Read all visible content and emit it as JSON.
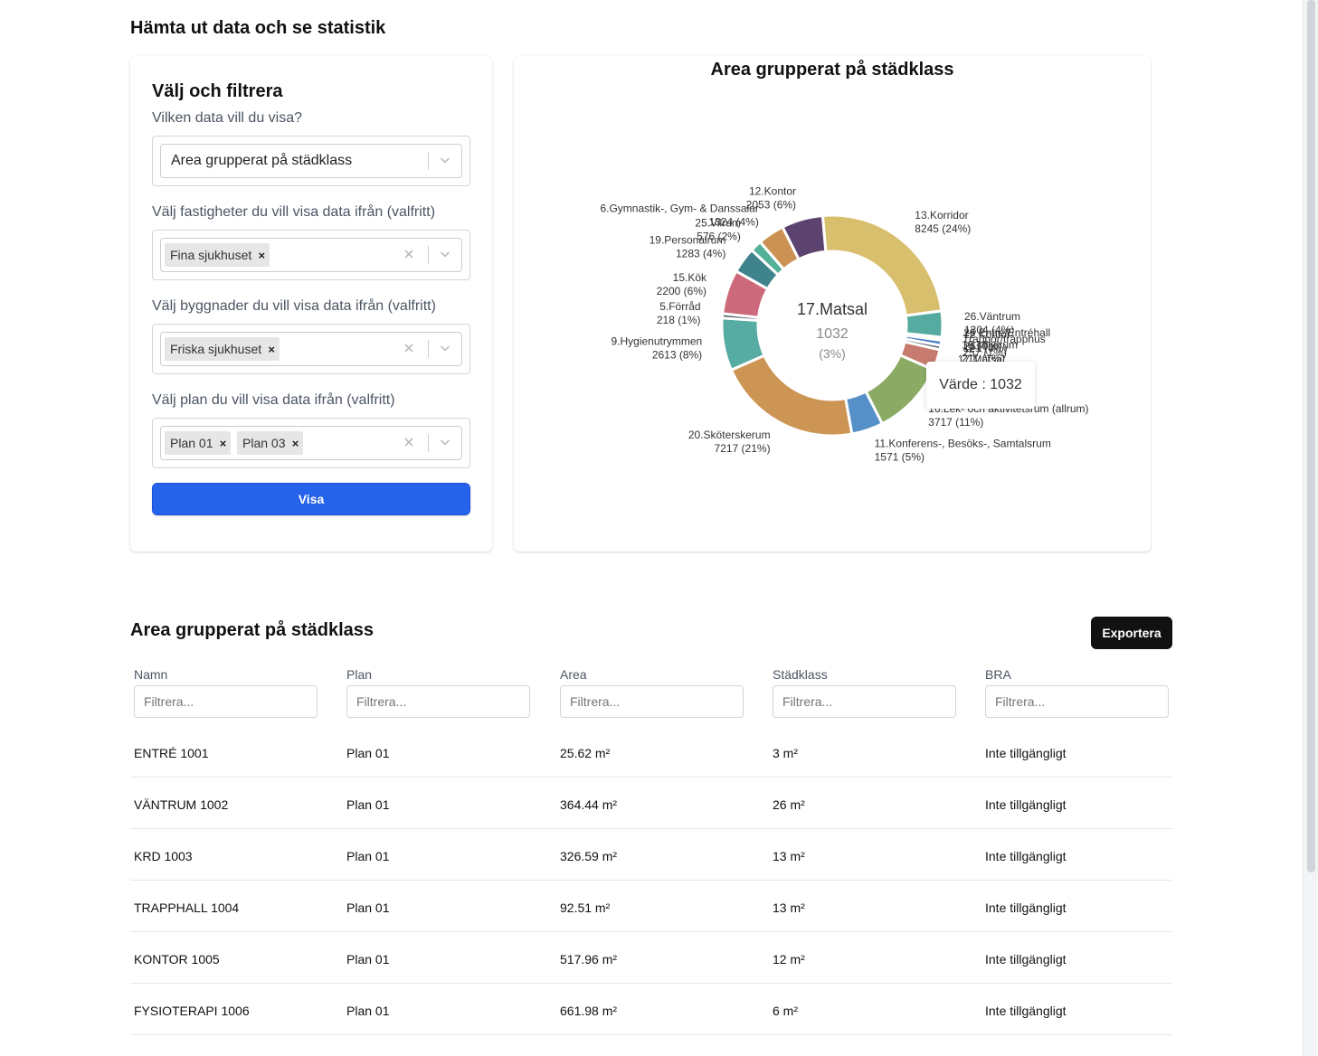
{
  "page": {
    "title": "Hämta ut data och se statistik"
  },
  "filters": {
    "title": "Välj och filtrera",
    "data_label": "Vilken data vill du visa?",
    "data_value": "Area grupperat på städklass",
    "properties_label": "Välj fastigheter du vill visa data ifrån (valfritt)",
    "properties_chips": [
      "Fina sjukhuset"
    ],
    "buildings_label": "Välj byggnader du vill visa data ifrån (valfritt)",
    "buildings_chips": [
      "Friska sjukhuset"
    ],
    "plans_label": "Välj plan du vill visa data ifrån (valfritt)",
    "plans_chips": [
      "Plan 01",
      "Plan 03"
    ],
    "chip_remove": "×",
    "submit_label": "Visa"
  },
  "chart_data": {
    "type": "pie",
    "title": "Area grupperat på städklass",
    "center_name": "17.Matsal",
    "center_value": "1032",
    "center_pct": "(3%)",
    "slices": [
      {
        "name": "13.Korridor",
        "value": 8245,
        "label": "8245 (24%)",
        "color": "#d8bf6e"
      },
      {
        "name": "26.Väntrum",
        "value": 1304,
        "label": "1304 (4%)",
        "color": "#55ab9f"
      },
      {
        "name": "26 Entré/Entréhall",
        "value": 26,
        "label": "26 (0%)",
        "color": "#e06d78"
      },
      {
        "name": "12 Kontor",
        "value": 121,
        "label": "121 (0%)",
        "color": "#6d7cc2"
      },
      {
        "name": "Trappor/trapphus",
        "value": 257,
        "label": "257 (1%)",
        "color": "#4f80c3"
      },
      {
        "name": "18.Miljörum",
        "value": 211,
        "label": "211 (1%)",
        "color": "#595f6b"
      },
      {
        "name": "17.Matsal",
        "value": 1032,
        "label": "1032 (3%)",
        "color": "#c77b6e"
      },
      {
        "name": "16.Lek- och aktivitetsrum (allrum)",
        "value": 3717,
        "label": "3717 (11%)",
        "color": "#8bab65"
      },
      {
        "name": "11.Konferens-, Besöks-, Samtalsrum",
        "value": 1571,
        "label": "1571 (5%)",
        "color": "#5690c8"
      },
      {
        "name": "20.Sköterskerum",
        "value": 7217,
        "label": "7217 (21%)",
        "color": "#cc9554"
      },
      {
        "name": "9.Hygienutrymmen",
        "value": 2613,
        "label": "2613 (8%)",
        "color": "#56aba3"
      },
      {
        "name": "5.Förråd",
        "value": 218,
        "label": "218 (1%)",
        "color": "#5b6270"
      },
      {
        "name": "15.Kök",
        "value": 2200,
        "label": "2200 (6%)",
        "color": "#cc6a7c"
      },
      {
        "name": "19.Personalrum",
        "value": 1283,
        "label": "1283 (4%)",
        "color": "#3f848d"
      },
      {
        "name": "25.Vilrum",
        "value": 576,
        "label": "576 (2%)",
        "color": "#53b19a"
      },
      {
        "name": "6.Gymnastik-, Gym- & Danssalar",
        "value": 1324,
        "label": "1324 (4%)",
        "color": "#cc9254"
      },
      {
        "name": "12.Kontor",
        "value": 2053,
        "label": "2053 (6%)",
        "color": "#5d4470"
      }
    ],
    "tooltip": "Värde : 1032"
  },
  "table": {
    "title": "Area grupperat på städklass",
    "export_label": "Exportera",
    "columns": [
      "Namn",
      "Plan",
      "Area",
      "Städklass",
      "BRA"
    ],
    "filter_placeholder": "Filtrera...",
    "rows": [
      [
        "ENTRÉ 1001",
        "Plan 01",
        "25.62 m²",
        "3 m²",
        "Inte tillgängligt"
      ],
      [
        "VÄNTRUM 1002",
        "Plan 01",
        "364.44 m²",
        "26 m²",
        "Inte tillgängligt"
      ],
      [
        "KRD 1003",
        "Plan 01",
        "326.59 m²",
        "13 m²",
        "Inte tillgängligt"
      ],
      [
        "TRAPPHALL 1004",
        "Plan 01",
        "92.51 m²",
        "13 m²",
        "Inte tillgängligt"
      ],
      [
        "KONTOR 1005",
        "Plan 01",
        "517.96 m²",
        "12 m²",
        "Inte tillgängligt"
      ],
      [
        "FYSIOTERAPI 1006",
        "Plan 01",
        "661.98 m²",
        "6 m²",
        "Inte tillgängligt"
      ]
    ]
  }
}
